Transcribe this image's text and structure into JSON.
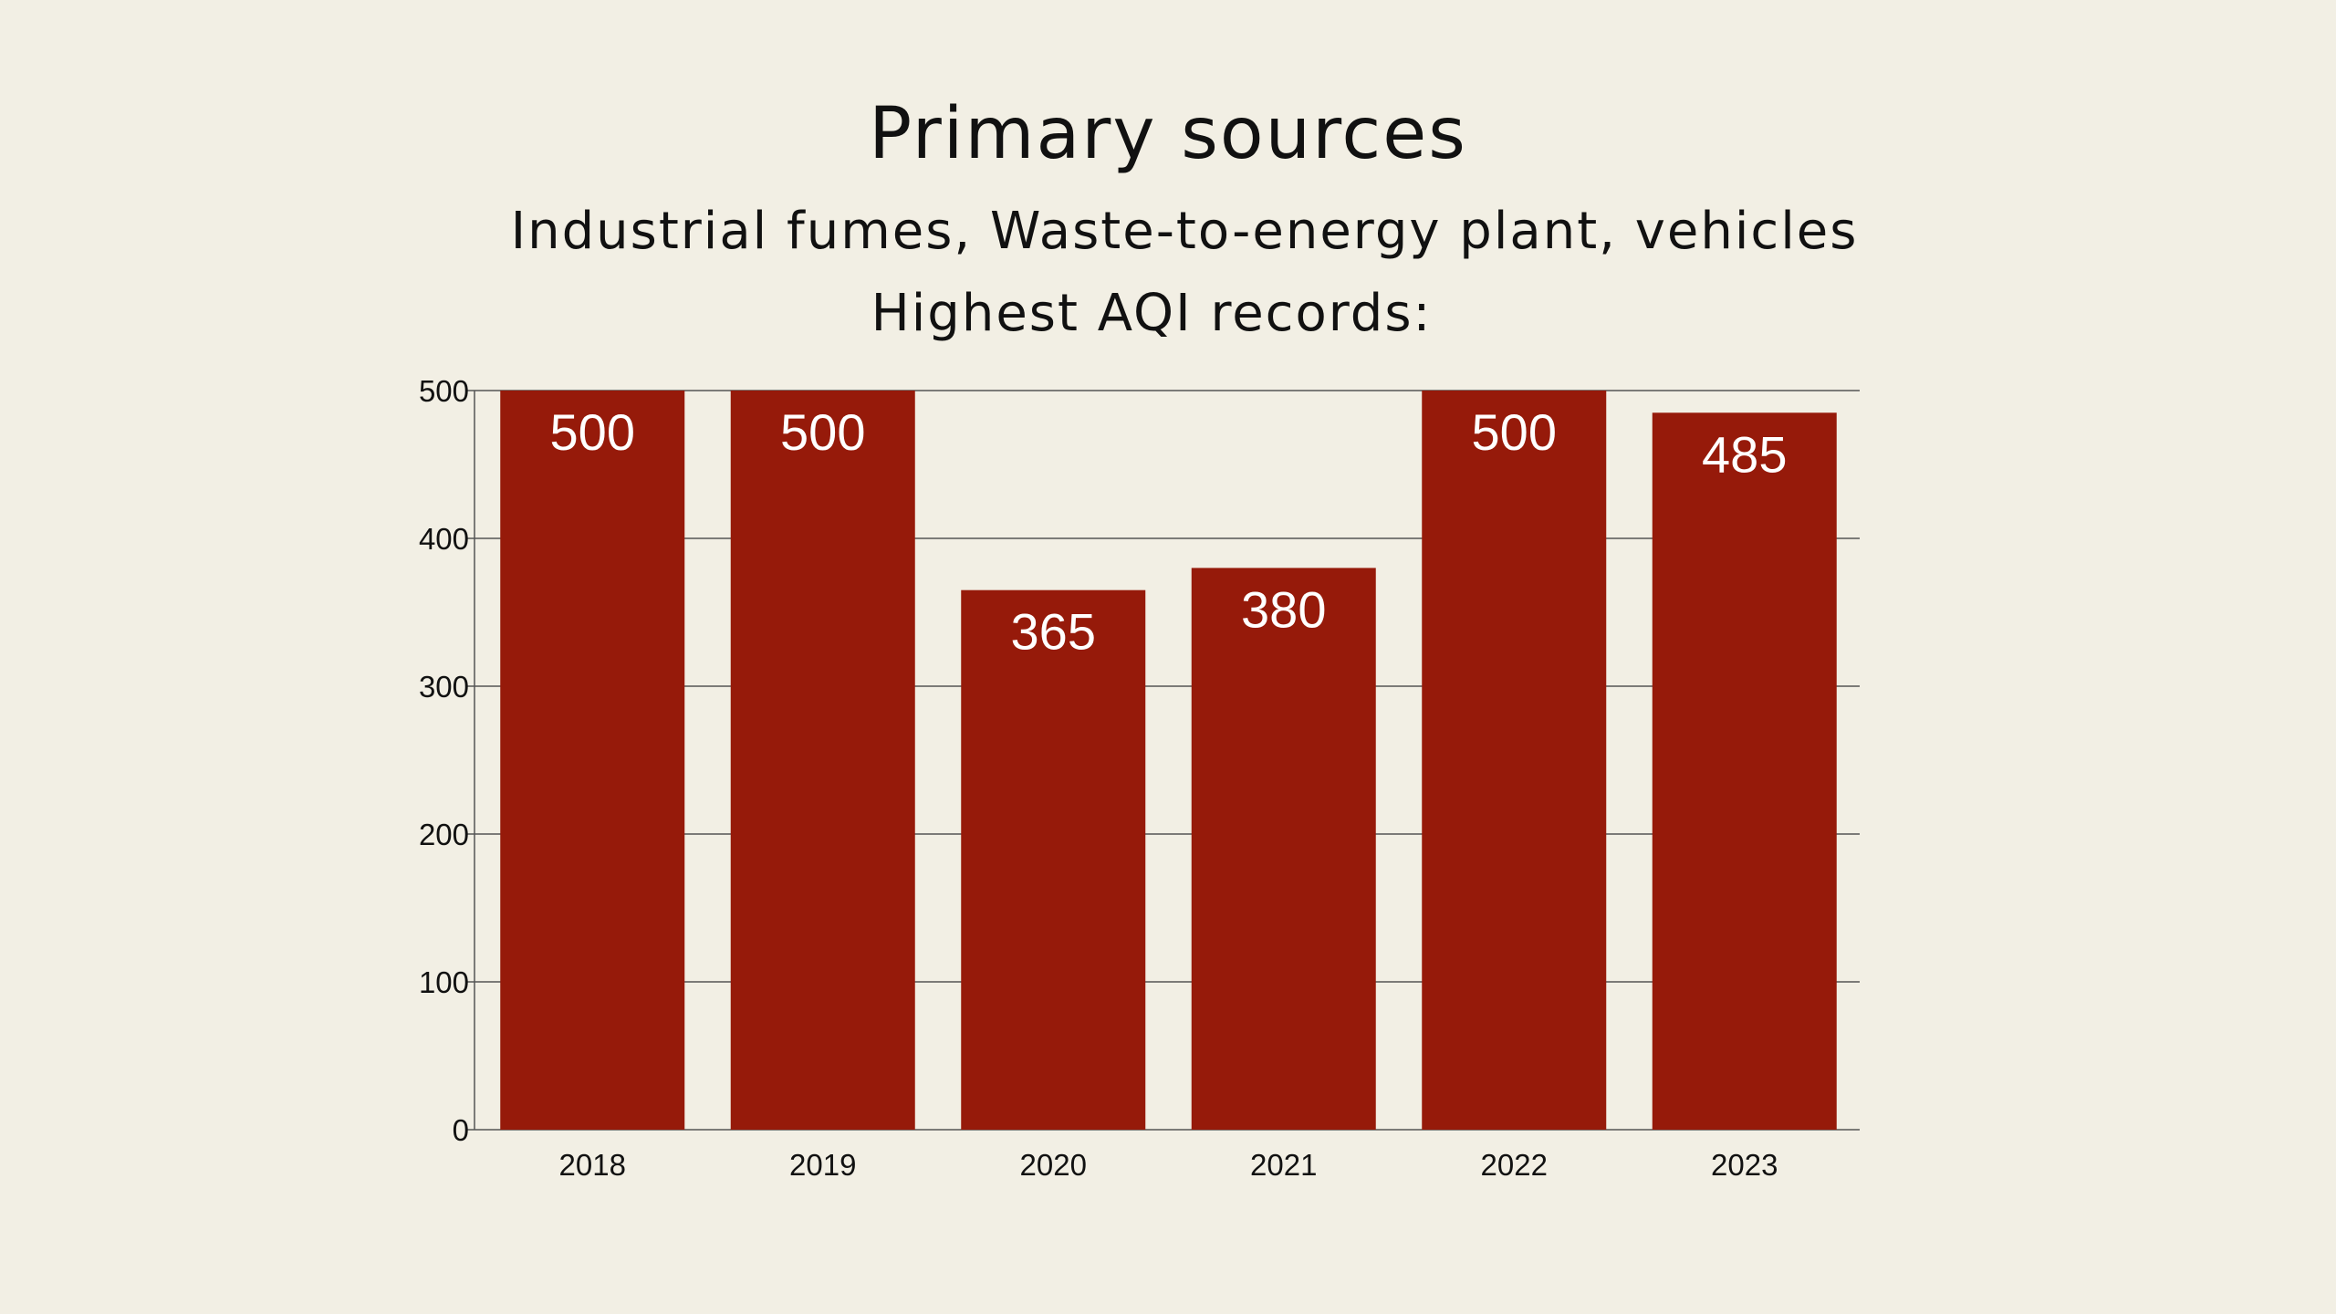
{
  "colors": {
    "background": "#f2efe4",
    "bar": "#961a0a",
    "grid": "#555555",
    "label": "#ffffff"
  },
  "header": {
    "title": "Primary sources",
    "subtitle_sources": "Industrial fumes, Waste-to-energy plant, vehicles",
    "subtitle_records": "Highest AQI records:"
  },
  "chart_data": {
    "type": "bar",
    "title": "Primary sources",
    "subtitle": "Industrial fumes, Waste-to-energy plant, vehicles — Highest AQI records:",
    "categories": [
      "2018",
      "2019",
      "2020",
      "2021",
      "2022",
      "2023"
    ],
    "values": [
      500,
      500,
      365,
      380,
      500,
      485
    ],
    "data_labels": [
      "500",
      "500",
      "365",
      "380",
      "500",
      "485"
    ],
    "yticks": [
      "0",
      "100",
      "200",
      "300",
      "400",
      "500"
    ],
    "ylim": [
      0,
      500
    ],
    "xlabel": "",
    "ylabel": "",
    "grid": true,
    "legend": "none"
  }
}
